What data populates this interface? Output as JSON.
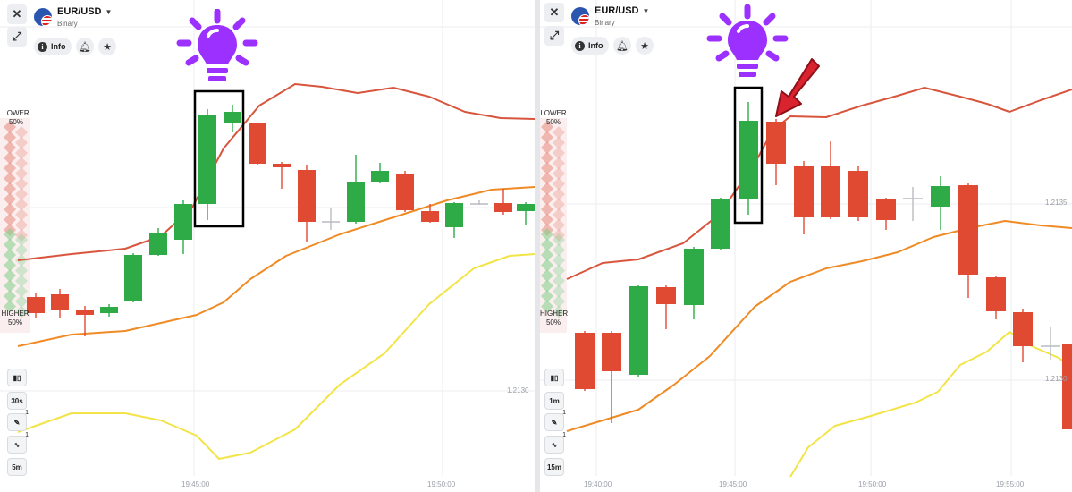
{
  "panels": [
    {
      "id": "left",
      "pair": "EUR/USD",
      "pair_type": "Binary",
      "info_label": "Info",
      "lower_label": "LOWER",
      "lower_pct": "50%",
      "higher_label": "HIGHER",
      "higher_pct": "50%",
      "timeframe": "30s",
      "tool_count_1": "1",
      "tool_count_2": "1",
      "period": "5m",
      "price_labels": [
        "1.2130"
      ],
      "time_labels": [
        "19:45:00",
        "19:50:00"
      ]
    },
    {
      "id": "right",
      "pair": "EUR/USD",
      "pair_type": "Binary",
      "info_label": "Info",
      "lower_label": "LOWER",
      "lower_pct": "50%",
      "higher_label": "HIGHER",
      "higher_pct": "50%",
      "timeframe": "1m",
      "tool_count_1": "1",
      "tool_count_2": "1",
      "period": "15m",
      "price_labels": [
        "1.2135",
        "1.2130"
      ],
      "time_labels": [
        "19:40:00",
        "19:45:00",
        "19:50:00",
        "19:55:00"
      ]
    }
  ],
  "colors": {
    "bullish": "#2eab47",
    "bearish": "#e04a32",
    "band_upper": "#d8553d",
    "band_middle": "#ef8a25",
    "band_lower": "#f2e447",
    "bulb": "#9b30ff",
    "arrow": "#d9232e",
    "highlight_box": "#000000"
  },
  "icons": {
    "close": "close-icon",
    "expand": "expand-icon",
    "info": "info-icon",
    "bell": "bell-icon",
    "star": "star-icon",
    "candle": "candles-icon",
    "pencil": "pencil-icon",
    "wave": "indicator-wave-icon",
    "bulb": "light-bulb-icon",
    "arrow": "pointer-arrow-icon"
  }
}
